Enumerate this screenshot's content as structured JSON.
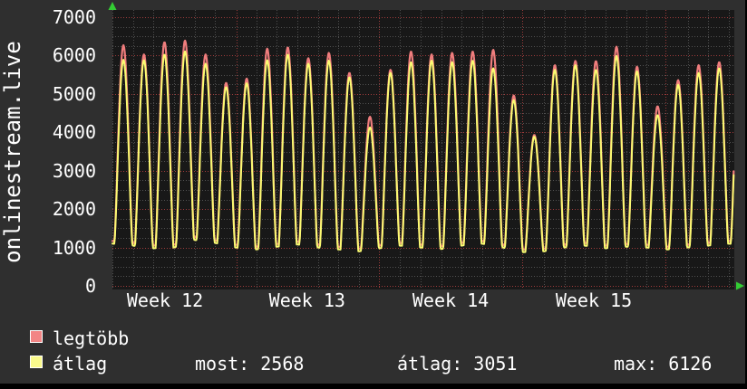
{
  "title_vertical": "onlinestream.live",
  "colors": {
    "bg": "#2f2f2f",
    "plot_bg": "#181818",
    "grid_minor": "#505050",
    "grid_major": "#9e3b3b",
    "text": "#ffffff",
    "arrow": "#33cc33",
    "series_max": "#ef7d7d",
    "series_avg": "#fbfb72",
    "swatch_max": "#f28585",
    "swatch_avg": "#fafa8c",
    "shade": "#000000"
  },
  "legend": {
    "items": [
      {
        "label": "legtöbb",
        "color": "#f28585"
      },
      {
        "label": "átlag",
        "color": "#fafa8c"
      }
    ],
    "stats": [
      "most: 2568",
      "átlag: 3051",
      "max: 6126"
    ]
  },
  "chart_data": {
    "type": "line",
    "title": "onlinestream.live",
    "xlabel": "",
    "ylabel": "",
    "ylim": [
      0,
      7000
    ],
    "y_ticks": [
      0,
      1000,
      2000,
      3000,
      4000,
      5000,
      6000,
      7000
    ],
    "minor_y_step": 250,
    "grid": true,
    "legend_position": "bottom-left",
    "x_unit": "days",
    "days_visible": 30.27,
    "week_boundaries_day": [
      6.05,
      12.97,
      19.95,
      26.92
    ],
    "x_tick_labels": [
      "Week 12",
      "Week 13",
      "Week 14",
      "Week 15"
    ],
    "series": [
      {
        "name": "legtöbb",
        "color": "#ef7d7d",
        "trough_offset": 70,
        "daily_peaks": [
          6270,
          6030,
          6350,
          6390,
          6030,
          5290,
          5400,
          6180,
          6215,
          5930,
          6070,
          5550,
          4405,
          5630,
          6110,
          6030,
          6070,
          6110,
          6150,
          4960,
          3935,
          5750,
          5860,
          5860,
          6230,
          5710,
          4680,
          5360,
          5750,
          5830,
          5850
        ]
      },
      {
        "name": "átlag",
        "color": "#fbfb72",
        "trough_offset": 0,
        "daily_peaks": [
          5890,
          5880,
          6030,
          6110,
          5790,
          5180,
          5280,
          5880,
          6030,
          5790,
          5870,
          5435,
          4130,
          5550,
          5830,
          5870,
          5830,
          5870,
          5670,
          4840,
          3890,
          5630,
          5750,
          5630,
          5990,
          5590,
          4450,
          5240,
          5550,
          5670,
          5700
        ],
        "stats": {
          "current": 2568,
          "average": 3051,
          "max": 6126
        }
      }
    ],
    "daily_troughs": [
      1100,
      1050,
      980,
      1000,
      1200,
      1120,
      1000,
      950,
      1020,
      1080,
      1000,
      950,
      900,
      980,
      1050,
      1000,
      960,
      1050,
      1100,
      1000,
      880,
      900,
      1000,
      1050,
      980,
      1020,
      1000,
      950,
      1000,
      1050,
      1100,
      1050
    ]
  }
}
